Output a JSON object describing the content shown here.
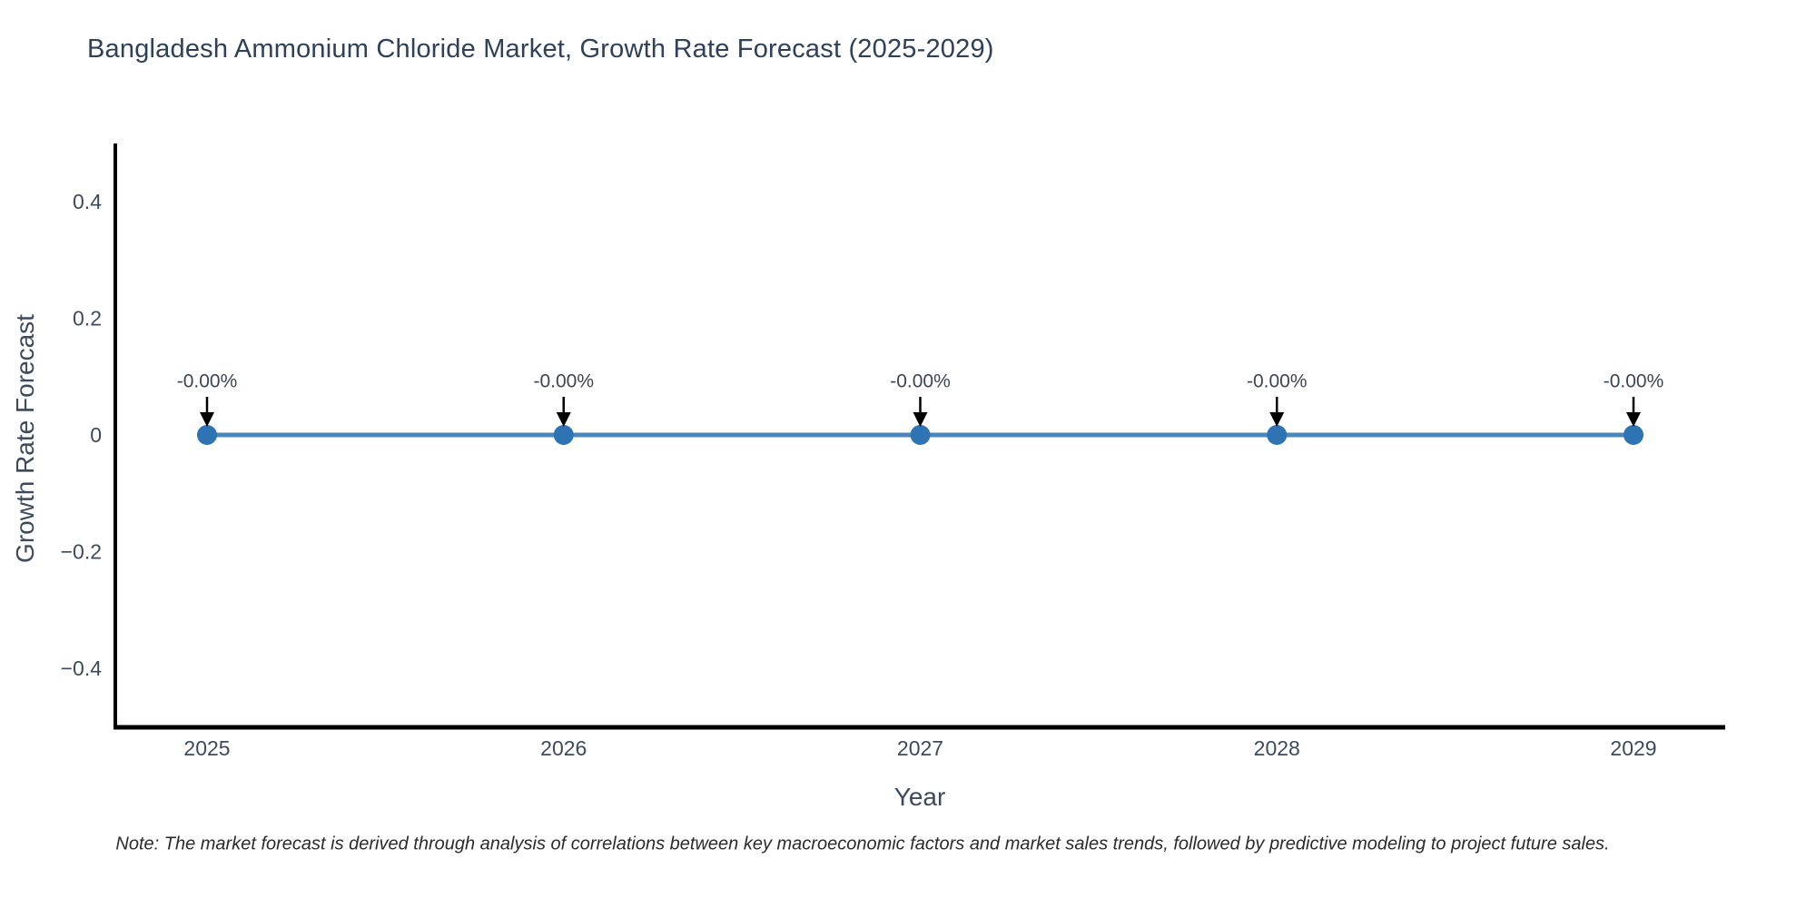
{
  "note": "Note: The market forecast is derived through analysis of correlations between key macroeconomic factors and market sales trends, followed by predictive modeling to project future sales.",
  "chart_data": {
    "type": "line",
    "title": "Bangladesh Ammonium Chloride Market, Growth Rate Forecast (2025-2029)",
    "xlabel": "Year",
    "ylabel": "Growth Rate Forecast",
    "x": [
      2025,
      2026,
      2027,
      2028,
      2029
    ],
    "categories": [
      "2025",
      "2026",
      "2027",
      "2028",
      "2029"
    ],
    "series": [
      {
        "name": "Growth Rate Forecast",
        "values": [
          0,
          0,
          0,
          0,
          0
        ]
      }
    ],
    "point_labels": [
      "-0.00%",
      "-0.00%",
      "-0.00%",
      "-0.00%",
      "-0.00%"
    ],
    "y_ticks": [
      {
        "value": 0.4,
        "label": "0.4"
      },
      {
        "value": 0.2,
        "label": "0.2"
      },
      {
        "value": 0,
        "label": "0"
      },
      {
        "value": -0.2,
        "label": "−0.2"
      },
      {
        "value": -0.4,
        "label": "−0.4"
      }
    ],
    "ylim": [
      -0.5,
      0.5
    ],
    "grid": false,
    "legend": "none",
    "marker_radius": 11,
    "line_width": 5,
    "colors": {
      "line": "#4f86b8",
      "marker": "#2e73b4",
      "axis": "#000000",
      "arrow": "#000000",
      "title_text": "#2f4158",
      "axis_title_text": "#3d4a5c",
      "tick_text": "#3d4a5c",
      "annotation_text": "#3c4551",
      "note_text": "#2b2b2b",
      "background": "#ffffff"
    }
  }
}
